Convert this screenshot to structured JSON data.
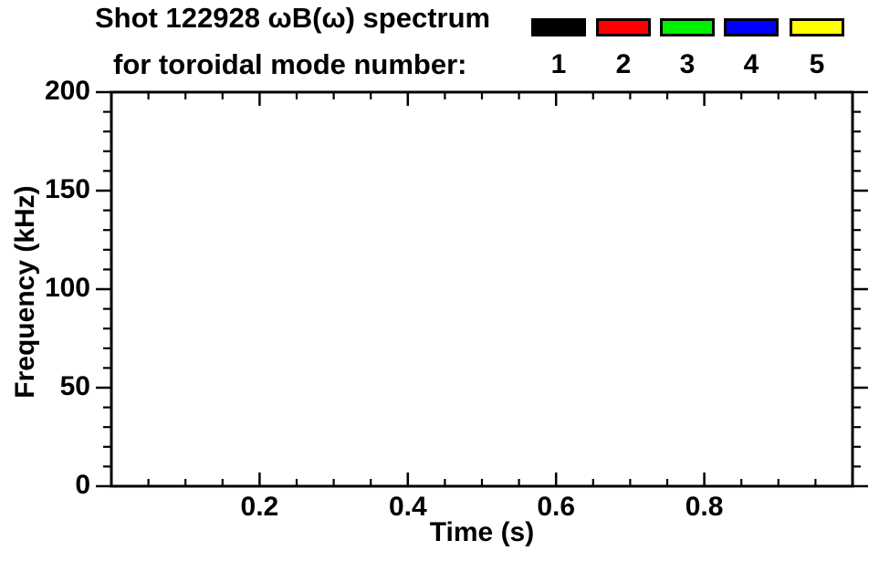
{
  "page": {
    "background": "#ffffff"
  },
  "header": {
    "title_line1": "Shot 122928 ωB(ω) spectrum",
    "title_line2": "for toroidal mode number:"
  },
  "legend": {
    "entries": [
      {
        "label": "1",
        "color": "#000000"
      },
      {
        "label": "2",
        "color": "#ff0000"
      },
      {
        "label": "3",
        "color": "#00f000"
      },
      {
        "label": "4",
        "color": "#0000ff"
      },
      {
        "label": "5",
        "color": "#ffff00"
      }
    ]
  },
  "chart_data": {
    "type": "line",
    "title": "Shot 122928 ωB(ω) spectrum for toroidal mode number: 1 2 3 4 5",
    "xlabel": "Time (s)",
    "ylabel": "Frequency (kHz)",
    "xlim": [
      0,
      1.0
    ],
    "ylim": [
      0,
      200
    ],
    "xtick_values": [
      0.2,
      0.4,
      0.6,
      0.8
    ],
    "xtick_labels": [
      "0.2",
      "0.4",
      "0.6",
      "0.8"
    ],
    "x_minor_step": 0.05,
    "ytick_values": [
      0,
      50,
      100,
      150,
      200
    ],
    "ytick_labels": [
      "0",
      "50",
      "100",
      "150",
      "200"
    ],
    "y_minor_step": 10,
    "grid": false,
    "legend_position": "top-right",
    "frame_color": "#000000",
    "series": [
      {
        "name": "1",
        "color": "#000000",
        "points": []
      },
      {
        "name": "2",
        "color": "#ff0000",
        "points": []
      },
      {
        "name": "3",
        "color": "#00f000",
        "points": []
      },
      {
        "name": "4",
        "color": "#0000ff",
        "points": []
      },
      {
        "name": "5",
        "color": "#ffff00",
        "points": []
      }
    ],
    "plot_area_empty": true
  }
}
